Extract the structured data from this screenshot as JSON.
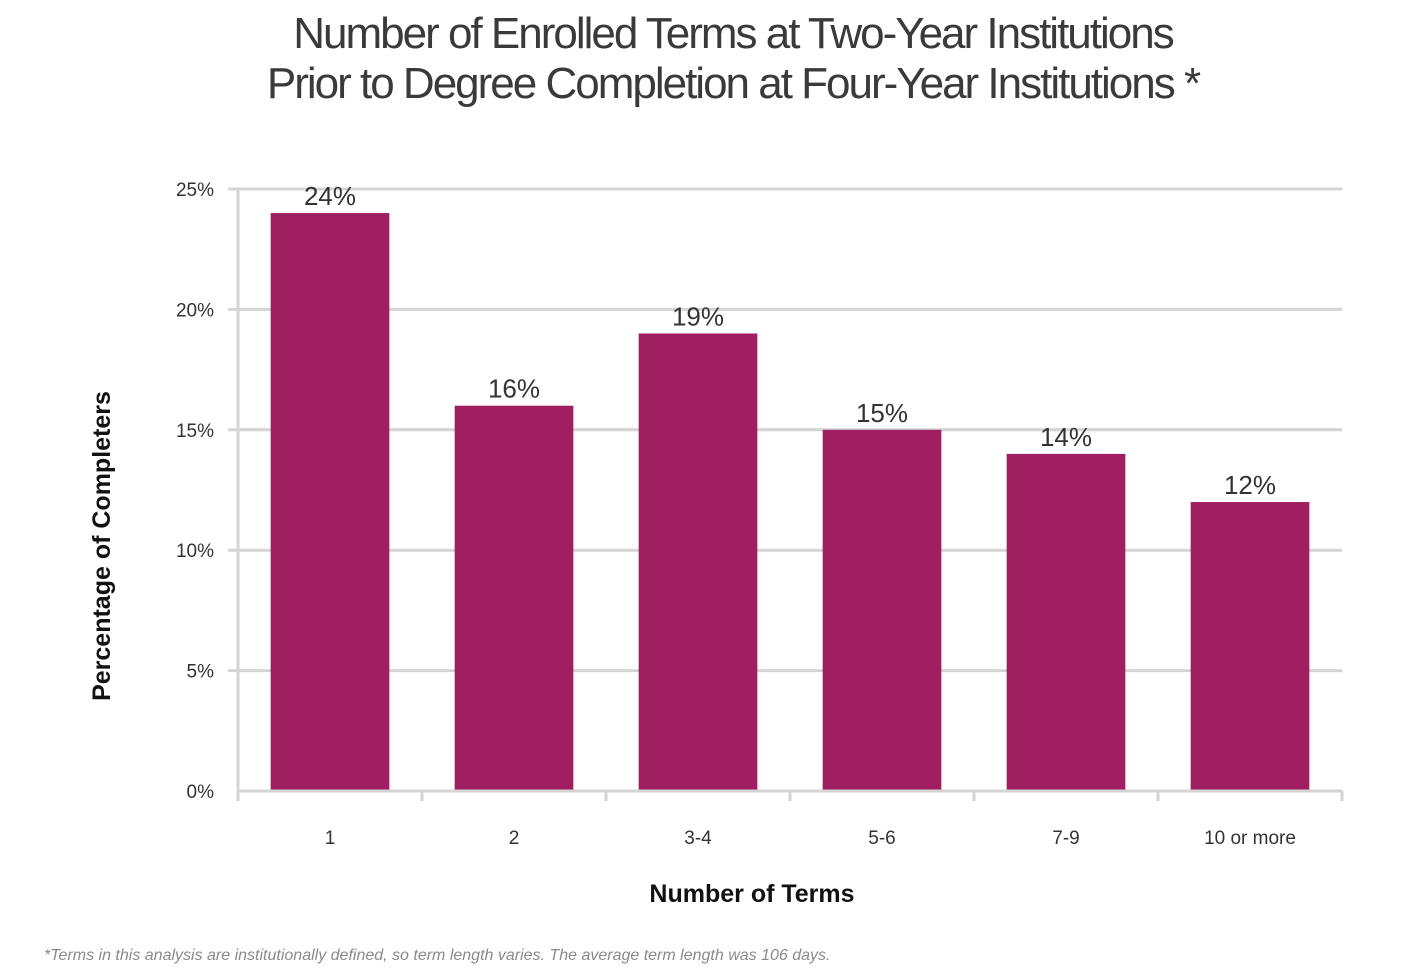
{
  "chart_data": {
    "type": "bar",
    "title_lines": [
      "Number of Enrolled Terms at Two-Year Institutions",
      "Prior to Degree Completion at Four-Year Institutions *"
    ],
    "xlabel": "Number of Terms",
    "ylabel": "Percentage of Completers",
    "categories": [
      "1",
      "2",
      "3-4",
      "5-6",
      "7-9",
      "10 or more"
    ],
    "values": [
      24,
      16,
      19,
      15,
      14,
      12
    ],
    "value_labels": [
      "24%",
      "16%",
      "19%",
      "15%",
      "14%",
      "12%"
    ],
    "ylim": [
      0,
      25
    ],
    "yticks": [
      0,
      5,
      10,
      15,
      20,
      25
    ],
    "ytick_labels": [
      "0%",
      "5%",
      "10%",
      "15%",
      "20%",
      "25%"
    ],
    "grid": true,
    "legend": "none",
    "bar_color": "#a01f60",
    "grid_color": "#d4d4d4",
    "footnote": "*Terms in this analysis are institutionally defined, so term length varies. The average term length was 106 days."
  }
}
